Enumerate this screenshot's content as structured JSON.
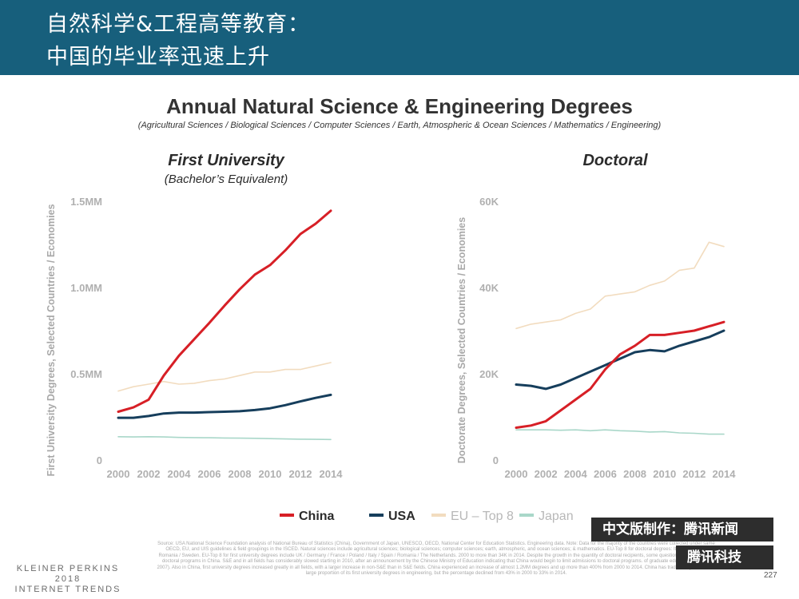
{
  "header": {
    "line1": "自然科学&工程高等教育：",
    "line2": "中国的毕业率迅速上升"
  },
  "title": "Annual Natural Science & Engineering Degrees",
  "subtitle": "(Agricultural Sciences / Biological Sciences / Computer Sciences / Earth, Atmospheric & Ocean Sciences / Mathematics / Engineering)",
  "colors": {
    "header_bg": "#175f7c",
    "china": "#d71f26",
    "usa": "#163e5c",
    "eu": "#f2dcbf",
    "japan": "#a9d7c9"
  },
  "legend": [
    "China",
    "USA",
    "EU – Top 8",
    "Japan"
  ],
  "chart_data": [
    {
      "type": "line",
      "title": "First University",
      "subtitle": "(Bachelor’s Equivalent)",
      "ylabel": "First University Degrees, Selected Countries / Economies",
      "x_ticks": [
        "2000",
        "2002",
        "2004",
        "2006",
        "2008",
        "2010",
        "2012",
        "2014"
      ],
      "y_ticks": [
        "0",
        "0.5MM",
        "1.0MM",
        "1.5MM"
      ],
      "xlim": [
        2000,
        2014
      ],
      "ylim": [
        0,
        1500000
      ],
      "grid": false,
      "legend_position": "bottom",
      "x": [
        2000,
        2001,
        2002,
        2003,
        2004,
        2005,
        2006,
        2007,
        2008,
        2009,
        2010,
        2011,
        2012,
        2013,
        2014
      ],
      "series": [
        {
          "name": "China",
          "values": [
            280000,
            305000,
            350000,
            490000,
            605000,
            700000,
            795000,
            895000,
            990000,
            1075000,
            1130000,
            1215000,
            1310000,
            1370000,
            1445000
          ]
        },
        {
          "name": "USA",
          "values": [
            245000,
            245000,
            255000,
            270000,
            275000,
            275000,
            278000,
            280000,
            283000,
            290000,
            300000,
            318000,
            340000,
            360000,
            378000
          ]
        },
        {
          "name": "EU – Top 8",
          "values": [
            400000,
            425000,
            440000,
            455000,
            440000,
            445000,
            460000,
            470000,
            490000,
            510000,
            510000,
            525000,
            525000,
            545000,
            565000
          ]
        },
        {
          "name": "Japan",
          "values": [
            135000,
            134000,
            135000,
            134000,
            131000,
            130000,
            129000,
            128000,
            127000,
            126000,
            124000,
            122000,
            121000,
            120000,
            119000
          ]
        }
      ]
    },
    {
      "type": "line",
      "title": "Doctoral",
      "ylabel": "Doctorate Degrees, Selected Countries / Economies",
      "x_ticks": [
        "2000",
        "2002",
        "2004",
        "2006",
        "2008",
        "2010",
        "2012",
        "2014"
      ],
      "y_ticks": [
        "0",
        "20K",
        "40K",
        "60K"
      ],
      "xlim": [
        2000,
        2014
      ],
      "ylim": [
        0,
        60000
      ],
      "grid": false,
      "legend_position": "bottom",
      "x": [
        2000,
        2001,
        2002,
        2003,
        2004,
        2005,
        2006,
        2007,
        2008,
        2009,
        2010,
        2011,
        2012,
        2013,
        2014
      ],
      "series": [
        {
          "name": "China",
          "values": [
            7500,
            8000,
            9000,
            11500,
            14000,
            16500,
            21000,
            24500,
            26500,
            29000,
            29000,
            29500,
            30000,
            31000,
            32000
          ]
        },
        {
          "name": "USA",
          "values": [
            17500,
            17200,
            16500,
            17500,
            19000,
            20500,
            22000,
            23500,
            25000,
            25500,
            25200,
            26500,
            27500,
            28500,
            30000
          ]
        },
        {
          "name": "EU – Top 8",
          "values": [
            30500,
            31500,
            32000,
            32500,
            34000,
            35000,
            38000,
            38500,
            39000,
            40500,
            41500,
            44000,
            44500,
            50500,
            49500
          ]
        },
        {
          "name": "Japan",
          "values": [
            7000,
            7000,
            7000,
            6900,
            7000,
            6800,
            7000,
            6800,
            6700,
            6500,
            6600,
            6300,
            6200,
            6000,
            6000
          ]
        }
      ]
    }
  ],
  "footer": {
    "source": "Source: USA National Science Foundation analysis of National Bureau of Statistics (China), Government of Japan, UNESCO, OECD, National Center for Education Statistics. Engineering data. Note: Data for the majority of the countries were collected under same OECD, EU, and UIS guidelines & field groupings in the ISCED. Natural sciences include agricultural sciences; biological sciences; computer sciences; earth, atmospheric, and ocean sciences; & mathematics. EU-Top 8 for doctoral degrees: Italy / Portugal / Romania / Sweden. EU-Top 8 for first university degrees include UK / Germany / France / Poland / Italy / Spain / Romania / The Netherlands. 2000 to more than 34K in 2014. Despite the growth in the quantity of doctoral recipients, some question the quality of the doctoral programs in China. S&E and in all fields has considerably slowed starting in 2010, after an announcement by the Chinese Ministry of Education indicating that China would begin to limit admissions to doctoral programs. of graduate education (Mooney 2007). Also in China, first university degrees increased greatly in all fields, with a larger increase in non-S&E than in S&E fields. China experienced an increase of almost 1.2MM degrees and up more than 400% from 2000 to 2014. China has traditionally awarded a large proportion of its first university degrees in engineering, but the percentage declined from 43% in 2000 to 33% in 2014.",
    "brand_line1": "KLEINER PERKINS",
    "brand_line2": "2018",
    "brand_line3": "INTERNET TRENDS",
    "cn_credit": "中文版制作：腾讯新闻",
    "cn_credit2": "腾讯科技",
    "page_number": "227"
  }
}
